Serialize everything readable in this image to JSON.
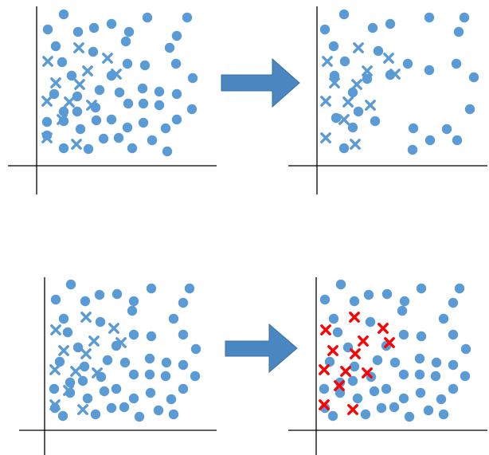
{
  "colors": {
    "point": "#5b9bd5",
    "highlight": "#ff0000",
    "arrow": "#4a86c0",
    "arrow_edge": "#3a6fa4",
    "axis": "#000000"
  },
  "icons": {
    "circle_point": "filled-circle",
    "cross_point": "x-mark",
    "arrow": "right-arrow"
  },
  "panels": [
    {
      "name": "panel-top-left",
      "circles": [
        [
          80,
          18
        ],
        [
          60,
          37
        ],
        [
          98,
          40
        ],
        [
          118,
          35
        ],
        [
          140,
          30
        ],
        [
          162,
          40
        ],
        [
          185,
          22
        ],
        [
          235,
          22
        ],
        [
          222,
          45
        ],
        [
          70,
          58
        ],
        [
          117,
          65
        ],
        [
          158,
          52
        ],
        [
          213,
          60
        ],
        [
          78,
          78
        ],
        [
          160,
          80
        ],
        [
          182,
          82
        ],
        [
          221,
          80
        ],
        [
          242,
          98
        ],
        [
          90,
          95
        ],
        [
          140,
          95
        ],
        [
          125,
          113
        ],
        [
          179,
          111
        ],
        [
          200,
          115
        ],
        [
          68,
          118
        ],
        [
          97,
          121
        ],
        [
          150,
          116
        ],
        [
          222,
          118
        ],
        [
          180,
          130
        ],
        [
          241,
          137
        ],
        [
          80,
          140
        ],
        [
          120,
          135
        ],
        [
          161,
          130
        ],
        [
          200,
          132
        ],
        [
          59,
          153
        ],
        [
          97,
          140
        ],
        [
          80,
          152
        ],
        [
          140,
          150
        ],
        [
          121,
          151
        ],
        [
          180,
          154
        ],
        [
          222,
          150
        ],
        [
          101,
          162
        ],
        [
          160,
          160
        ],
        [
          208,
          161
        ],
        [
          59,
          170
        ],
        [
          149,
          173
        ],
        [
          130,
          174
        ],
        [
          191,
          176
        ],
        [
          80,
          186
        ],
        [
          111,
          187
        ],
        [
          166,
          186
        ],
        [
          210,
          190
        ]
      ],
      "crosses": [
        [
          60,
          77
        ],
        [
          99,
          60
        ],
        [
          135,
          73
        ],
        [
          110,
          89
        ],
        [
          146,
          93
        ],
        [
          70,
          104
        ],
        [
          100,
          106
        ],
        [
          59,
          127
        ],
        [
          87,
          128
        ],
        [
          115,
          132
        ],
        [
          78,
          150
        ],
        [
          59,
          173
        ],
        [
          96,
          181
        ]
      ]
    },
    {
      "name": "panel-top-right",
      "circles": [
        [
          432,
          18
        ],
        [
          408,
          37
        ],
        [
          468,
          35
        ],
        [
          490,
          30
        ],
        [
          539,
          22
        ],
        [
          583,
          22
        ],
        [
          576,
          40
        ],
        [
          419,
          58
        ],
        [
          475,
          64
        ],
        [
          433,
          77
        ],
        [
          512,
          80
        ],
        [
          539,
          88
        ],
        [
          573,
          80
        ],
        [
          420,
          95
        ],
        [
          461,
          99
        ],
        [
          490,
          94
        ],
        [
          595,
          97
        ],
        [
          443,
          116
        ],
        [
          590,
          137
        ],
        [
          450,
          140
        ],
        [
          471,
          152
        ],
        [
          422,
          148
        ],
        [
          443,
          160
        ],
        [
          519,
          161
        ],
        [
          561,
          162
        ],
        [
          432,
          186
        ],
        [
          540,
          176
        ],
        [
          574,
          176
        ],
        [
          518,
          188
        ]
      ],
      "crosses": [
        [
          411,
          77
        ],
        [
          450,
          60
        ],
        [
          488,
          73
        ],
        [
          461,
          89
        ],
        [
          496,
          93
        ],
        [
          420,
          104
        ],
        [
          448,
          106
        ],
        [
          409,
          127
        ],
        [
          437,
          128
        ],
        [
          465,
          132
        ],
        [
          432,
          150
        ],
        [
          409,
          173
        ],
        [
          446,
          181
        ]
      ]
    },
    {
      "name": "panel-bottom-left",
      "circles": [
        [
          89,
          357
        ],
        [
          70,
          376
        ],
        [
          107,
          378
        ],
        [
          125,
          370
        ],
        [
          147,
          369
        ],
        [
          168,
          378
        ],
        [
          190,
          362
        ],
        [
          238,
          362
        ],
        [
          230,
          380
        ],
        [
          80,
          400
        ],
        [
          126,
          404
        ],
        [
          166,
          390
        ],
        [
          218,
          400
        ],
        [
          85,
          417
        ],
        [
          168,
          420
        ],
        [
          190,
          422
        ],
        [
          230,
          420
        ],
        [
          246,
          438
        ],
        [
          98,
          436
        ],
        [
          146,
          434
        ],
        [
          135,
          452
        ],
        [
          188,
          450
        ],
        [
          209,
          455
        ],
        [
          75,
          454
        ],
        [
          106,
          460
        ],
        [
          157,
          455
        ],
        [
          230,
          458
        ],
        [
          188,
          470
        ],
        [
          245,
          472
        ],
        [
          88,
          480
        ],
        [
          127,
          473
        ],
        [
          168,
          470
        ],
        [
          208,
          472
        ],
        [
          68,
          488
        ],
        [
          104,
          478
        ],
        [
          88,
          493
        ],
        [
          146,
          488
        ],
        [
          131,
          491
        ],
        [
          189,
          493
        ],
        [
          230,
          488
        ],
        [
          110,
          500
        ],
        [
          168,
          500
        ],
        [
          215,
          501
        ],
        [
          69,
          512
        ],
        [
          156,
          511
        ],
        [
          140,
          512
        ],
        [
          199,
          515
        ],
        [
          79,
          522
        ],
        [
          120,
          520
        ],
        [
          175,
          523
        ],
        [
          218,
          520
        ]
      ],
      "crosses": [
        [
          70,
          414
        ],
        [
          108,
          398
        ],
        [
          143,
          412
        ],
        [
          118,
          428
        ],
        [
          152,
          430
        ],
        [
          80,
          440
        ],
        [
          108,
          444
        ],
        [
          69,
          464
        ],
        [
          95,
          466
        ],
        [
          122,
          468
        ],
        [
          86,
          490
        ],
        [
          69,
          508
        ],
        [
          104,
          514
        ]
      ]
    },
    {
      "name": "panel-bottom-right",
      "circles": [
        [
          428,
          357
        ],
        [
          408,
          376
        ],
        [
          445,
          378
        ],
        [
          463,
          370
        ],
        [
          486,
          369
        ],
        [
          508,
          378
        ],
        [
          529,
          362
        ],
        [
          577,
          362
        ],
        [
          569,
          380
        ],
        [
          419,
          400
        ],
        [
          465,
          404
        ],
        [
          505,
          390
        ],
        [
          557,
          400
        ],
        [
          424,
          417
        ],
        [
          507,
          420
        ],
        [
          529,
          422
        ],
        [
          569,
          420
        ],
        [
          585,
          438
        ],
        [
          437,
          436
        ],
        [
          485,
          434
        ],
        [
          474,
          452
        ],
        [
          527,
          450
        ],
        [
          548,
          455
        ],
        [
          414,
          454
        ],
        [
          445,
          460
        ],
        [
          496,
          455
        ],
        [
          569,
          458
        ],
        [
          527,
          470
        ],
        [
          584,
          472
        ],
        [
          427,
          480
        ],
        [
          466,
          473
        ],
        [
          507,
          470
        ],
        [
          547,
          472
        ],
        [
          407,
          488
        ],
        [
          443,
          478
        ],
        [
          427,
          493
        ],
        [
          485,
          488
        ],
        [
          470,
          491
        ],
        [
          528,
          493
        ],
        [
          569,
          488
        ],
        [
          449,
          500
        ],
        [
          507,
          500
        ],
        [
          554,
          501
        ],
        [
          408,
          512
        ],
        [
          495,
          511
        ],
        [
          479,
          512
        ],
        [
          538,
          515
        ],
        [
          418,
          522
        ],
        [
          459,
          520
        ],
        [
          514,
          523
        ],
        [
          557,
          520
        ]
      ],
      "crosses": [
        [
          409,
          414
        ],
        [
          445,
          398
        ],
        [
          481,
          412
        ],
        [
          456,
          428
        ],
        [
          489,
          430
        ],
        [
          418,
          440
        ],
        [
          446,
          444
        ],
        [
          407,
          464
        ],
        [
          434,
          466
        ],
        [
          461,
          468
        ],
        [
          426,
          484
        ],
        [
          407,
          508
        ],
        [
          443,
          514
        ]
      ],
      "crosses_color": "highlight"
    }
  ]
}
